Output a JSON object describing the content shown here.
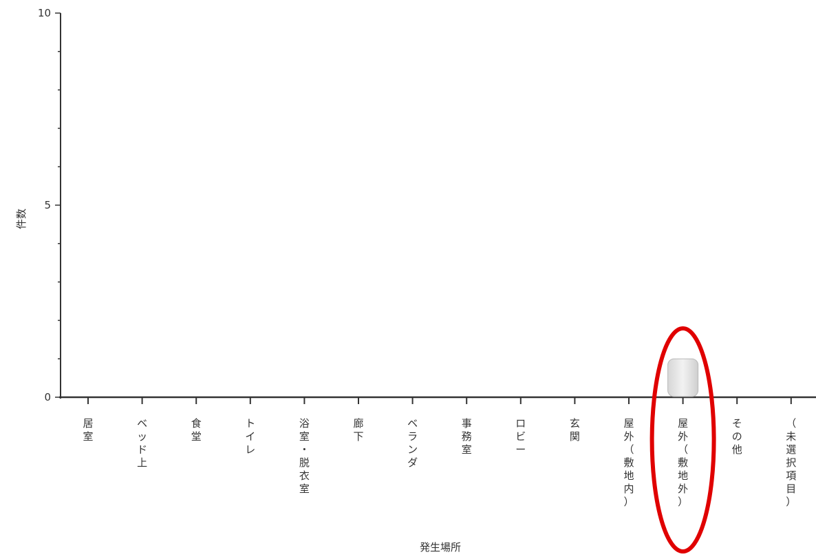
{
  "chart_data": {
    "type": "bar",
    "xlabel": "発生場所",
    "ylabel": "件数",
    "ylim": [
      0,
      10
    ],
    "yticks": [
      0,
      5,
      10
    ],
    "categories": [
      "居室",
      "ベッド上",
      "食堂",
      "トイレ",
      "浴室・脱衣室",
      "廊下",
      "ベランダ",
      "事務室",
      "ロビー",
      "玄関",
      "屋外（敷地内）",
      "屋外（敷地外）",
      "その他",
      "（未選択項目）"
    ],
    "values": [
      0,
      0,
      0,
      0,
      0,
      0,
      0,
      0,
      0,
      0,
      0,
      1,
      0,
      0
    ],
    "bar_color": "#e2e2e2",
    "highlight": {
      "category": "屋外（敷地外）",
      "color": "#e00000"
    },
    "grid": false
  }
}
